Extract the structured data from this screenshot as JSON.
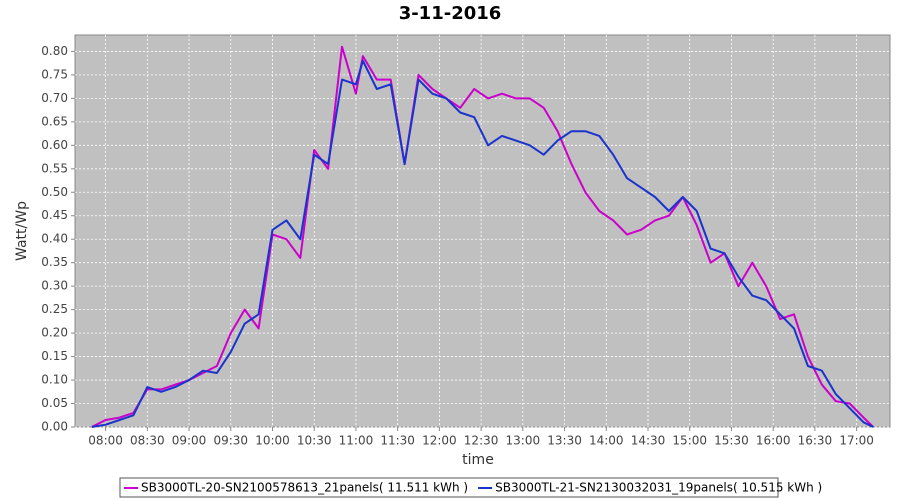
{
  "chart_data": {
    "type": "line",
    "title": "3-11-2016",
    "x_label": "time",
    "y_label": "Watt/Wp",
    "x": [
      "07:50",
      "08:00",
      "08:10",
      "08:20",
      "08:30",
      "08:40",
      "08:50",
      "09:00",
      "09:10",
      "09:20",
      "09:30",
      "09:40",
      "09:50",
      "10:00",
      "10:10",
      "10:20",
      "10:30",
      "10:40",
      "10:50",
      "11:00",
      "11:05",
      "11:15",
      "11:25",
      "11:35",
      "11:45",
      "11:55",
      "12:05",
      "12:15",
      "12:25",
      "12:35",
      "12:45",
      "12:55",
      "13:05",
      "13:15",
      "13:25",
      "13:35",
      "13:45",
      "13:55",
      "14:05",
      "14:15",
      "14:25",
      "14:35",
      "14:45",
      "14:55",
      "15:05",
      "15:15",
      "15:25",
      "15:35",
      "15:45",
      "15:55",
      "16:05",
      "16:15",
      "16:25",
      "16:35",
      "16:45",
      "16:55",
      "17:05",
      "17:12"
    ],
    "series": [
      {
        "name": "SB3000TL-20-SN2100578613_21panels( 11.511 kWh )",
        "color": "#cc00cc",
        "values": [
          0.0,
          0.015,
          0.02,
          0.03,
          0.08,
          0.08,
          0.09,
          0.1,
          0.115,
          0.13,
          0.2,
          0.25,
          0.21,
          0.41,
          0.4,
          0.36,
          0.59,
          0.55,
          0.81,
          0.71,
          0.79,
          0.74,
          0.74,
          0.56,
          0.75,
          0.72,
          0.7,
          0.68,
          0.72,
          0.7,
          0.71,
          0.7,
          0.7,
          0.68,
          0.63,
          0.56,
          0.5,
          0.46,
          0.44,
          0.41,
          0.42,
          0.44,
          0.45,
          0.49,
          0.43,
          0.35,
          0.37,
          0.3,
          0.35,
          0.3,
          0.23,
          0.24,
          0.15,
          0.09,
          0.055,
          0.05,
          0.02,
          0.0
        ]
      },
      {
        "name": "SB3000TL-21-SN2130032031_19panels( 10.515 kWh )",
        "color": "#1a33cc",
        "values": [
          0.0,
          0.005,
          0.015,
          0.025,
          0.085,
          0.075,
          0.085,
          0.1,
          0.12,
          0.115,
          0.16,
          0.22,
          0.24,
          0.42,
          0.44,
          0.4,
          0.58,
          0.56,
          0.74,
          0.73,
          0.78,
          0.72,
          0.73,
          0.56,
          0.74,
          0.71,
          0.7,
          0.67,
          0.66,
          0.6,
          0.62,
          0.61,
          0.6,
          0.58,
          0.61,
          0.63,
          0.63,
          0.62,
          0.58,
          0.53,
          0.51,
          0.49,
          0.46,
          0.49,
          0.46,
          0.38,
          0.37,
          0.32,
          0.28,
          0.27,
          0.24,
          0.21,
          0.13,
          0.12,
          0.07,
          0.04,
          0.01,
          0.0
        ]
      }
    ],
    "xlim": [
      "07:38",
      "17:24"
    ],
    "xticks": [
      "08:00",
      "08:30",
      "09:00",
      "09:30",
      "10:00",
      "10:30",
      "11:00",
      "11:30",
      "12:00",
      "12:30",
      "13:00",
      "13:30",
      "14:00",
      "14:30",
      "15:00",
      "15:30",
      "16:00",
      "16:30",
      "17:00"
    ],
    "ylim": [
      0,
      0.835
    ],
    "yticks": [
      {
        "value": 0,
        "label": "0.00"
      },
      {
        "value": 0.05,
        "label": "0.05"
      },
      {
        "value": 0.1,
        "label": "0.10"
      },
      {
        "value": 0.15,
        "label": "0.15"
      },
      {
        "value": 0.2,
        "label": "0.20"
      },
      {
        "value": 0.25,
        "label": "0.25"
      },
      {
        "value": 0.3,
        "label": "0.30"
      },
      {
        "value": 0.35,
        "label": "0.35"
      },
      {
        "value": 0.4,
        "label": "0.40"
      },
      {
        "value": 0.45,
        "label": "0.45"
      },
      {
        "value": 0.5,
        "label": "0.50"
      },
      {
        "value": 0.55,
        "label": "0.55"
      },
      {
        "value": 0.6,
        "label": "0.60"
      },
      {
        "value": 0.65,
        "label": "0.65"
      },
      {
        "value": 0.7,
        "label": "0.70"
      },
      {
        "value": 0.75,
        "label": "0.75"
      },
      {
        "value": 0.8,
        "label": "0.80"
      }
    ],
    "grid": true,
    "legend": "bottom"
  }
}
